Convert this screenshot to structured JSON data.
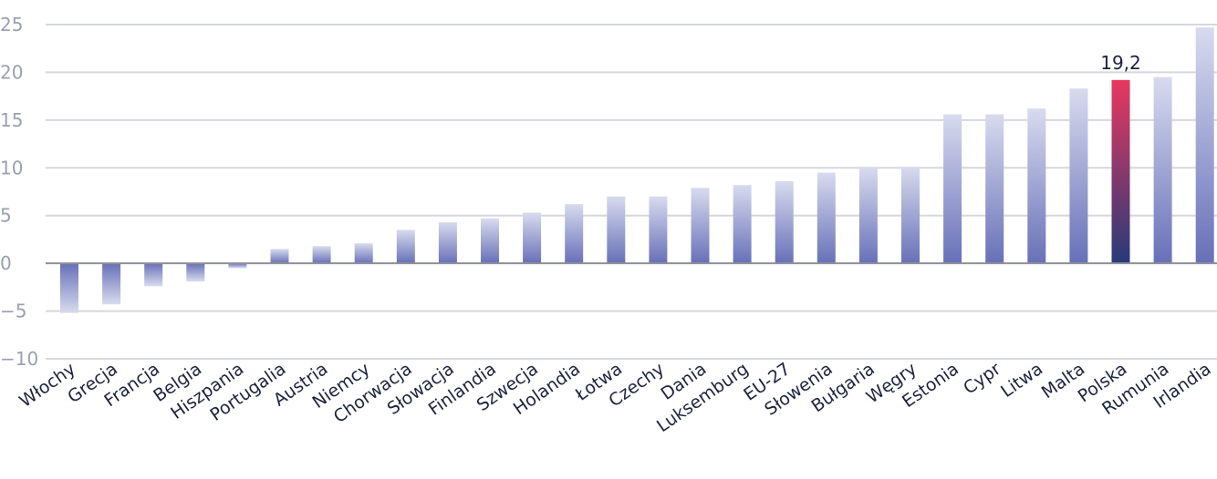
{
  "chart_data": {
    "type": "bar",
    "title": "",
    "xlabel": "",
    "ylabel": "",
    "ylim": [
      -10,
      25
    ],
    "yticks": [
      -10,
      -5,
      0,
      5,
      10,
      15,
      20,
      25
    ],
    "grid": true,
    "categories": [
      "Włochy",
      "Grecja",
      "Francja",
      "Belgia",
      "Hiszpania",
      "Portugalia",
      "Austria",
      "Niemcy",
      "Chorwacja",
      "Słowacja",
      "Finlandia",
      "Szwecja",
      "Holandia",
      "Łotwa",
      "Czechy",
      "Dania",
      "Luksemburg",
      "EU-27",
      "Słowenia",
      "Bułgaria",
      "Węgry",
      "Estonia",
      "Cypr",
      "Litwa",
      "Malta",
      "Polska",
      "Rumunia",
      "Irlandia"
    ],
    "values": [
      -5.2,
      -4.3,
      -2.4,
      -1.9,
      -0.5,
      1.5,
      1.8,
      2.1,
      3.5,
      4.3,
      4.7,
      5.3,
      6.2,
      7.0,
      7.0,
      7.9,
      8.2,
      8.6,
      9.5,
      10.0,
      10.1,
      15.6,
      15.6,
      16.2,
      18.3,
      19.2,
      19.5,
      24.7
    ],
    "highlight": {
      "category": "Polska",
      "label": "19,2"
    },
    "colors": {
      "bar_top": "#d8dbee",
      "bar_bottom": "#6770b8",
      "highlight_top": "#e8385f",
      "highlight_bottom": "#273a7a",
      "grid": "#d6d8de",
      "zero_line": "#8e9099"
    }
  }
}
